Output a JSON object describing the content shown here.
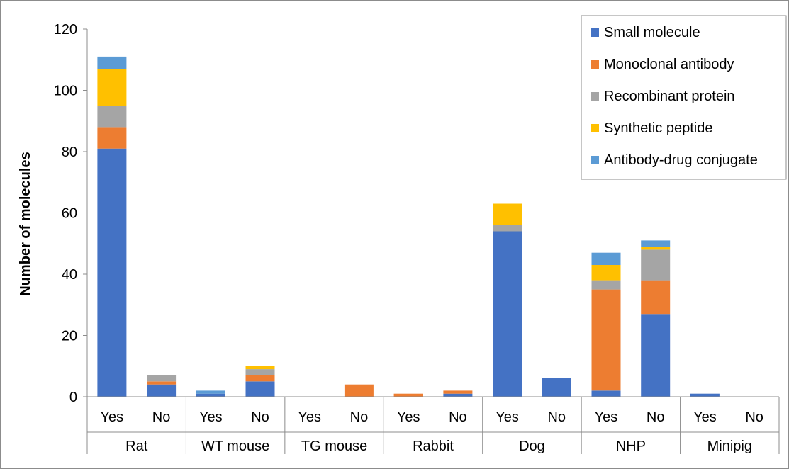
{
  "chart_data": {
    "type": "bar",
    "stacked": true,
    "title": "",
    "xlabel": "",
    "ylabel": "Number of molecules",
    "ylim": [
      0,
      120
    ],
    "yticks": [
      0,
      20,
      40,
      60,
      80,
      100,
      120
    ],
    "grid": false,
    "legend_position": "top-right",
    "groups": [
      "Rat",
      "WT mouse",
      "TG mouse",
      "Rabbit",
      "Dog",
      "NHP",
      "Minipig"
    ],
    "categories": [
      "Yes",
      "No",
      "Yes",
      "No",
      "Yes",
      "No",
      "Yes",
      "No",
      "Yes",
      "No",
      "Yes",
      "No",
      "Yes",
      "No"
    ],
    "series": [
      {
        "name": "Small molecule",
        "color": "#4472c4",
        "values": [
          81,
          4,
          1,
          5,
          0,
          0,
          0,
          1,
          54,
          6,
          2,
          27,
          1,
          0
        ]
      },
      {
        "name": "Monoclonal antibody",
        "color": "#ed7d31",
        "values": [
          7,
          1,
          0,
          2,
          0,
          4,
          1,
          1,
          0,
          0,
          33,
          11,
          0,
          0
        ]
      },
      {
        "name": "Recombinant protein",
        "color": "#a5a5a5",
        "values": [
          7,
          2,
          0,
          2,
          0,
          0,
          0,
          0,
          2,
          0,
          3,
          10,
          0,
          0
        ]
      },
      {
        "name": "Synthetic peptide",
        "color": "#ffc000",
        "values": [
          12,
          0,
          0,
          1,
          0,
          0,
          0,
          0,
          7,
          0,
          5,
          1,
          0,
          0
        ]
      },
      {
        "name": "Antibody-drug conjugate",
        "color": "#5b9bd5",
        "values": [
          4,
          0,
          1,
          0,
          0,
          0,
          0,
          0,
          0,
          0,
          4,
          2,
          0,
          0
        ]
      }
    ]
  }
}
